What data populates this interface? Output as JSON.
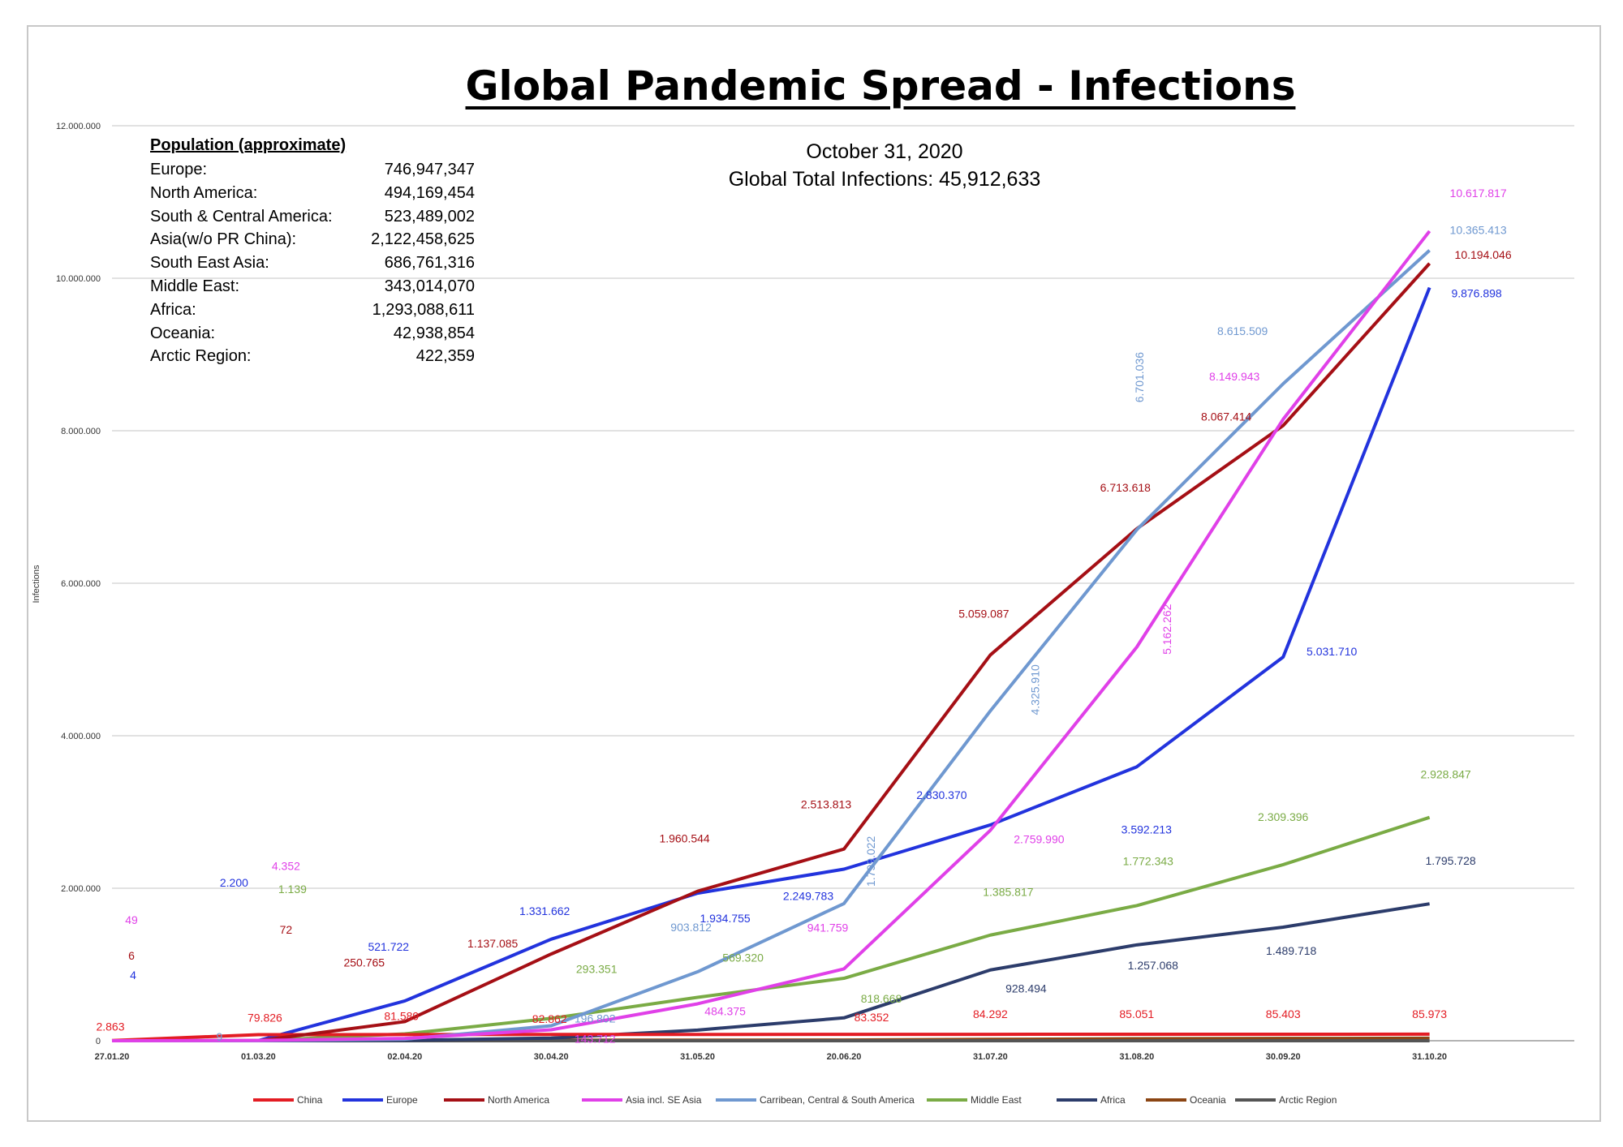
{
  "chart_data": {
    "type": "line",
    "title": "Global Pandemic Spread - Infections",
    "subtitle_date": "October 31, 2020",
    "subtitle_total": "Global Total Infections: 45,912,633",
    "ylabel": "Infections",
    "ylim": [
      0,
      12000000
    ],
    "y_ticks": [
      "0",
      "2.000.000",
      "4.000.000",
      "6.000.000",
      "8.000.000",
      "10.000.000",
      "12.000.000"
    ],
    "x_ticks": [
      "27.01.20",
      "01.03.20",
      "02.04.20",
      "30.04.20",
      "31.05.20",
      "20.06.20",
      "31.07.20",
      "31.08.20",
      "30.09.20",
      "31.10.20"
    ],
    "grid": true,
    "legend_position": "bottom",
    "series": [
      {
        "name": "China",
        "color": "#e31c23",
        "values": [
          2863,
          79826,
          81589,
          82862,
          83000,
          83352,
          84292,
          85051,
          85403,
          85973
        ],
        "labels": [
          "2.863",
          "79.826",
          "81.589",
          "82.862",
          "",
          "83.352",
          "84.292",
          "85.051",
          "85.403",
          "85.973"
        ]
      },
      {
        "name": "Europe",
        "color": "#2233dd",
        "values": [
          4,
          2200,
          521722,
          1331662,
          1934755,
          2249783,
          2830370,
          3592213,
          5031710,
          9876898
        ],
        "labels": [
          "4",
          "2.200",
          "521.722",
          "1.331.662",
          "1.934.755",
          "2.249.783",
          "2.830.370",
          "3.592.213",
          "5.031.710",
          "9.876.898"
        ]
      },
      {
        "name": "North America",
        "color": "#a50f15",
        "values": [
          6,
          72,
          250765,
          1137085,
          1960544,
          2513813,
          5059087,
          6713618,
          8067414,
          10194046
        ],
        "labels": [
          "6",
          "72",
          "250.765",
          "1.137.085",
          "1.960.544",
          "2.513.813",
          "5.059.087",
          "6.713.618",
          "8.067.414",
          "10.194.046"
        ]
      },
      {
        "name": "Asia incl. SE Asia",
        "color": "#e040e8",
        "values": [
          49,
          4352,
          30000,
          143712,
          484375,
          941759,
          2759990,
          5162262,
          8149943,
          10617817
        ],
        "labels": [
          "49",
          "4.352",
          "",
          "143.712",
          "484.375",
          "941.759",
          "2.759.990",
          "5.162.262",
          "8.149.943",
          "10.617.817"
        ]
      },
      {
        "name": "Carribean, Central & South America",
        "color": "#6f98d0",
        "values": [
          0,
          9,
          20000,
          196802,
          903812,
          1799022,
          4325910,
          6701036,
          8615509,
          10365413
        ],
        "labels": [
          "",
          "9",
          "",
          "196.802",
          "903.812",
          "1.799.022",
          "4.325.910",
          "6.701.036",
          "8.615.509",
          "10.365.413"
        ]
      },
      {
        "name": "Middle East",
        "color": "#7aab45",
        "values": [
          0,
          1139,
          90000,
          293351,
          569320,
          818668,
          1385817,
          1772343,
          2309396,
          2928847
        ],
        "labels": [
          "",
          "1.139",
          "",
          "293.351",
          "569.320",
          "818.668",
          "1.385.817",
          "1.772.343",
          "2.309.396",
          "2.928.847"
        ]
      },
      {
        "name": "Africa",
        "color": "#2c3c6b",
        "values": [
          0,
          0,
          5000,
          35000,
          140000,
          300000,
          928494,
          1257068,
          1489718,
          1795728
        ],
        "labels": [
          "",
          "",
          "",
          "",
          "",
          "",
          "928.494",
          "1.257.068",
          "1.489.718",
          "1.795.728"
        ]
      },
      {
        "name": "Oceania",
        "color": "#8b4513",
        "values": [
          0,
          0,
          5000,
          7000,
          8000,
          9000,
          18000,
          27000,
          30000,
          33000
        ],
        "labels": [
          "",
          "",
          "",
          "",
          "",
          "",
          "",
          "",
          "",
          ""
        ]
      },
      {
        "name": "Arctic Region",
        "color": "#555555",
        "values": [
          0,
          0,
          0,
          0,
          0,
          0,
          0,
          0,
          0,
          0
        ],
        "labels": [
          "",
          "",
          "",
          "",
          "",
          "",
          "",
          "",
          "",
          ""
        ]
      }
    ]
  },
  "population": {
    "heading": "Population  (approximate)",
    "rows": [
      {
        "region": "Europe:",
        "value": "746,947,347"
      },
      {
        "region": "North America:",
        "value": "494,169,454"
      },
      {
        "region": "South & Central America:",
        "value": "523,489,002"
      },
      {
        "region": "Asia(w/o PR China):",
        "value": "2,122,458,625"
      },
      {
        "region": "South East Asia:",
        "value": "686,761,316"
      },
      {
        "region": "Middle East:",
        "value": "343,014,070"
      },
      {
        "region": "Africa:",
        "value": "1,293,088,611"
      },
      {
        "region": "Oceania:",
        "value": "42,938,854"
      },
      {
        "region": "Arctic Region:",
        "value": "422,359"
      }
    ]
  },
  "legend": [
    "China",
    "Europe",
    "North America",
    "Asia incl. SE Asia",
    "Carribean, Central & South America",
    "Middle East",
    "Africa",
    "Oceania",
    "Arctic Region"
  ]
}
